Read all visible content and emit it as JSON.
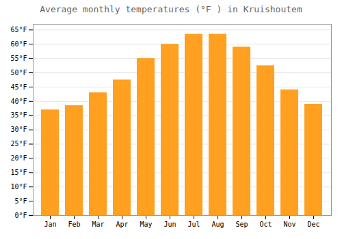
{
  "chart_data": {
    "type": "bar",
    "title": "Average monthly temperatures (°F ) in Kruishoutem",
    "categories": [
      "Jan",
      "Feb",
      "Mar",
      "Apr",
      "May",
      "Jun",
      "Jul",
      "Aug",
      "Sep",
      "Oct",
      "Nov",
      "Dec"
    ],
    "values": [
      37.0,
      38.5,
      43.0,
      47.5,
      55.0,
      60.0,
      63.5,
      63.5,
      59.0,
      52.5,
      44.0,
      39.0
    ],
    "color": "#FFA020",
    "ylim": [
      0,
      67
    ],
    "yticks": [
      {
        "value": 0,
        "label": "0°F"
      },
      {
        "value": 5,
        "label": "5°F"
      },
      {
        "value": 10,
        "label": "10°F"
      },
      {
        "value": 15,
        "label": "15°F"
      },
      {
        "value": 20,
        "label": "20°F"
      },
      {
        "value": 25,
        "label": "25°F"
      },
      {
        "value": 30,
        "label": "30°F"
      },
      {
        "value": 35,
        "label": "35°F"
      },
      {
        "value": 40,
        "label": "40°F"
      },
      {
        "value": 45,
        "label": "45°F"
      },
      {
        "value": 50,
        "label": "50°F"
      },
      {
        "value": 55,
        "label": "55°F"
      },
      {
        "value": 60,
        "label": "60°F"
      },
      {
        "value": 65,
        "label": "65°F"
      }
    ],
    "grid": true
  }
}
